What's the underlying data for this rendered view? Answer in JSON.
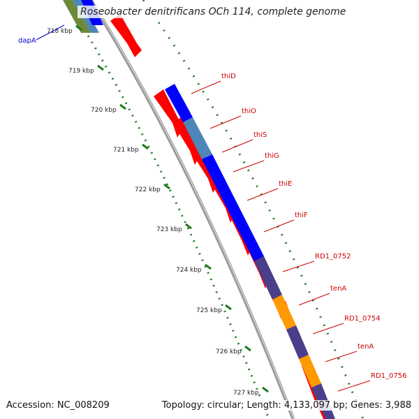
{
  "title": "Roseobacter denitrificans OCh 114, complete genome",
  "footer": {
    "accession": "Accession: NC_008209",
    "summary": "Topology: circular; Length: 4,133,097 bp; Genes: 3,988"
  },
  "colors": {
    "backbone": "#8e8e8e",
    "cds": "#ff0000",
    "tick": "#1e7a1e",
    "gene_label": "#cc0000",
    "reverse_gene_label": "#0000cc"
  },
  "ruler": [
    "718 kbp",
    "719 kbp",
    "720 kbp",
    "721 kbp",
    "722 kbp",
    "723 kbp",
    "724 kbp",
    "725 kbp",
    "726 kbp",
    "727 kbp"
  ],
  "genes": [
    {
      "name": "dapA",
      "color": "#0000cc"
    },
    {
      "name": "thiD",
      "color": "#cc0000"
    },
    {
      "name": "thiO",
      "color": "#cc0000"
    },
    {
      "name": "thiS",
      "color": "#cc0000"
    },
    {
      "name": "thiG",
      "color": "#cc0000"
    },
    {
      "name": "thiE",
      "color": "#cc0000"
    },
    {
      "name": "thiF",
      "color": "#cc0000"
    },
    {
      "name": "RD1_0752",
      "color": "#cc0000"
    },
    {
      "name": "tenA",
      "color": "#cc0000"
    },
    {
      "name": "RD1_0754",
      "color": "#cc0000"
    },
    {
      "name": "tenA",
      "color": "#cc0000"
    },
    {
      "name": "RD1_0756",
      "color": "#cc0000"
    }
  ],
  "feature_bands": [
    {
      "name": "gene-blue",
      "color": "#0000ff"
    },
    {
      "name": "cds-steelblue",
      "color": "#4f86b8"
    },
    {
      "name": "cds-slate",
      "color": "#4b3f8c"
    },
    {
      "name": "cds-orange",
      "color": "#ff9900"
    },
    {
      "name": "cds-olive",
      "color": "#6d8a3a"
    }
  ]
}
